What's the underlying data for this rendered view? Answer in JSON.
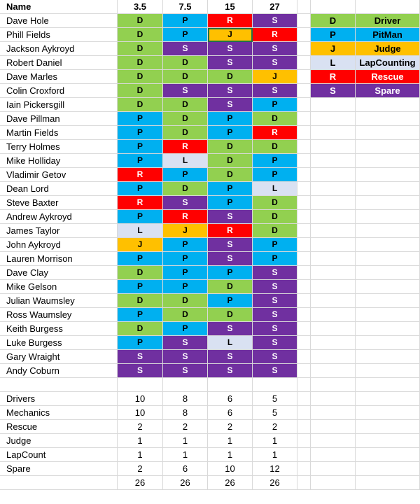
{
  "colors": {
    "D": "#92d050",
    "P": "#00b0f0",
    "J": "#ffc000",
    "L": "#d9e1f2",
    "R": "#ff0000",
    "S": "#7030a0",
    "grid": "#d9d9d9",
    "selection": "#217346"
  },
  "header": {
    "name": "Name",
    "cols": [
      "3.5",
      "7.5",
      "15",
      "27"
    ]
  },
  "people": [
    {
      "name": "Dave Hole",
      "codes": [
        "D",
        "P",
        "R",
        "S"
      ]
    },
    {
      "name": "Phill Fields",
      "codes": [
        "D",
        "P",
        "J",
        "R"
      ]
    },
    {
      "name": "Jackson Aykroyd",
      "codes": [
        "D",
        "S",
        "S",
        "S"
      ]
    },
    {
      "name": "Robert Daniel",
      "codes": [
        "D",
        "D",
        "S",
        "S"
      ]
    },
    {
      "name": "Dave Marles",
      "codes": [
        "D",
        "D",
        "D",
        "J"
      ]
    },
    {
      "name": "Colin Croxford",
      "codes": [
        "D",
        "S",
        "S",
        "S"
      ]
    },
    {
      "name": "Iain Pickersgill",
      "codes": [
        "D",
        "D",
        "S",
        "P"
      ]
    },
    {
      "name": "Dave Pillman",
      "codes": [
        "P",
        "D",
        "P",
        "D"
      ]
    },
    {
      "name": "Martin Fields",
      "codes": [
        "P",
        "D",
        "P",
        "R"
      ]
    },
    {
      "name": "Terry Holmes",
      "codes": [
        "P",
        "R",
        "D",
        "D"
      ]
    },
    {
      "name": "Mike Holliday",
      "codes": [
        "P",
        "L",
        "D",
        "P"
      ]
    },
    {
      "name": "Vladimir Getov",
      "codes": [
        "R",
        "P",
        "D",
        "P"
      ]
    },
    {
      "name": "Dean Lord",
      "codes": [
        "P",
        "D",
        "P",
        "L"
      ]
    },
    {
      "name": "Steve Baxter",
      "codes": [
        "R",
        "S",
        "P",
        "D"
      ]
    },
    {
      "name": "Andrew Aykroyd",
      "codes": [
        "P",
        "R",
        "S",
        "D"
      ]
    },
    {
      "name": "James Taylor",
      "codes": [
        "L",
        "J",
        "R",
        "D"
      ]
    },
    {
      "name": "John Aykroyd",
      "codes": [
        "J",
        "P",
        "S",
        "P"
      ]
    },
    {
      "name": "Lauren Morrison",
      "codes": [
        "P",
        "P",
        "S",
        "P"
      ]
    },
    {
      "name": "Dave Clay",
      "codes": [
        "D",
        "P",
        "P",
        "S"
      ]
    },
    {
      "name": "Mike Gelson",
      "codes": [
        "P",
        "P",
        "D",
        "S"
      ]
    },
    {
      "name": "Julian Waumsley",
      "codes": [
        "D",
        "D",
        "P",
        "S"
      ]
    },
    {
      "name": "Ross Waumsley",
      "codes": [
        "P",
        "D",
        "D",
        "S"
      ]
    },
    {
      "name": "Keith Burgess",
      "codes": [
        "D",
        "P",
        "S",
        "S"
      ]
    },
    {
      "name": "Luke Burgess",
      "codes": [
        "P",
        "S",
        "L",
        "S"
      ]
    },
    {
      "name": "Gary Wraight",
      "codes": [
        "S",
        "S",
        "S",
        "S"
      ]
    },
    {
      "name": "Andy Coburn",
      "codes": [
        "S",
        "S",
        "S",
        "S"
      ]
    }
  ],
  "legend": [
    {
      "code": "D",
      "label": "Driver"
    },
    {
      "code": "P",
      "label": "PitMan"
    },
    {
      "code": "J",
      "label": "Judge"
    },
    {
      "code": "L",
      "label": "LapCounting"
    },
    {
      "code": "R",
      "label": "Rescue"
    },
    {
      "code": "S",
      "label": "Spare"
    }
  ],
  "summary": [
    {
      "label": "Drivers",
      "values": [
        "10",
        "8",
        "6",
        "5"
      ]
    },
    {
      "label": "Mechanics",
      "values": [
        "10",
        "8",
        "6",
        "5"
      ]
    },
    {
      "label": "Rescue",
      "values": [
        "2",
        "2",
        "2",
        "2"
      ]
    },
    {
      "label": "Judge",
      "values": [
        "1",
        "1",
        "1",
        "1"
      ]
    },
    {
      "label": "LapCount",
      "values": [
        "1",
        "1",
        "1",
        "1"
      ]
    },
    {
      "label": "Spare",
      "values": [
        "2",
        "6",
        "10",
        "12"
      ]
    }
  ],
  "totals": [
    "26",
    "26",
    "26",
    "26"
  ],
  "selected_cell": {
    "row": 1,
    "col": 2
  }
}
